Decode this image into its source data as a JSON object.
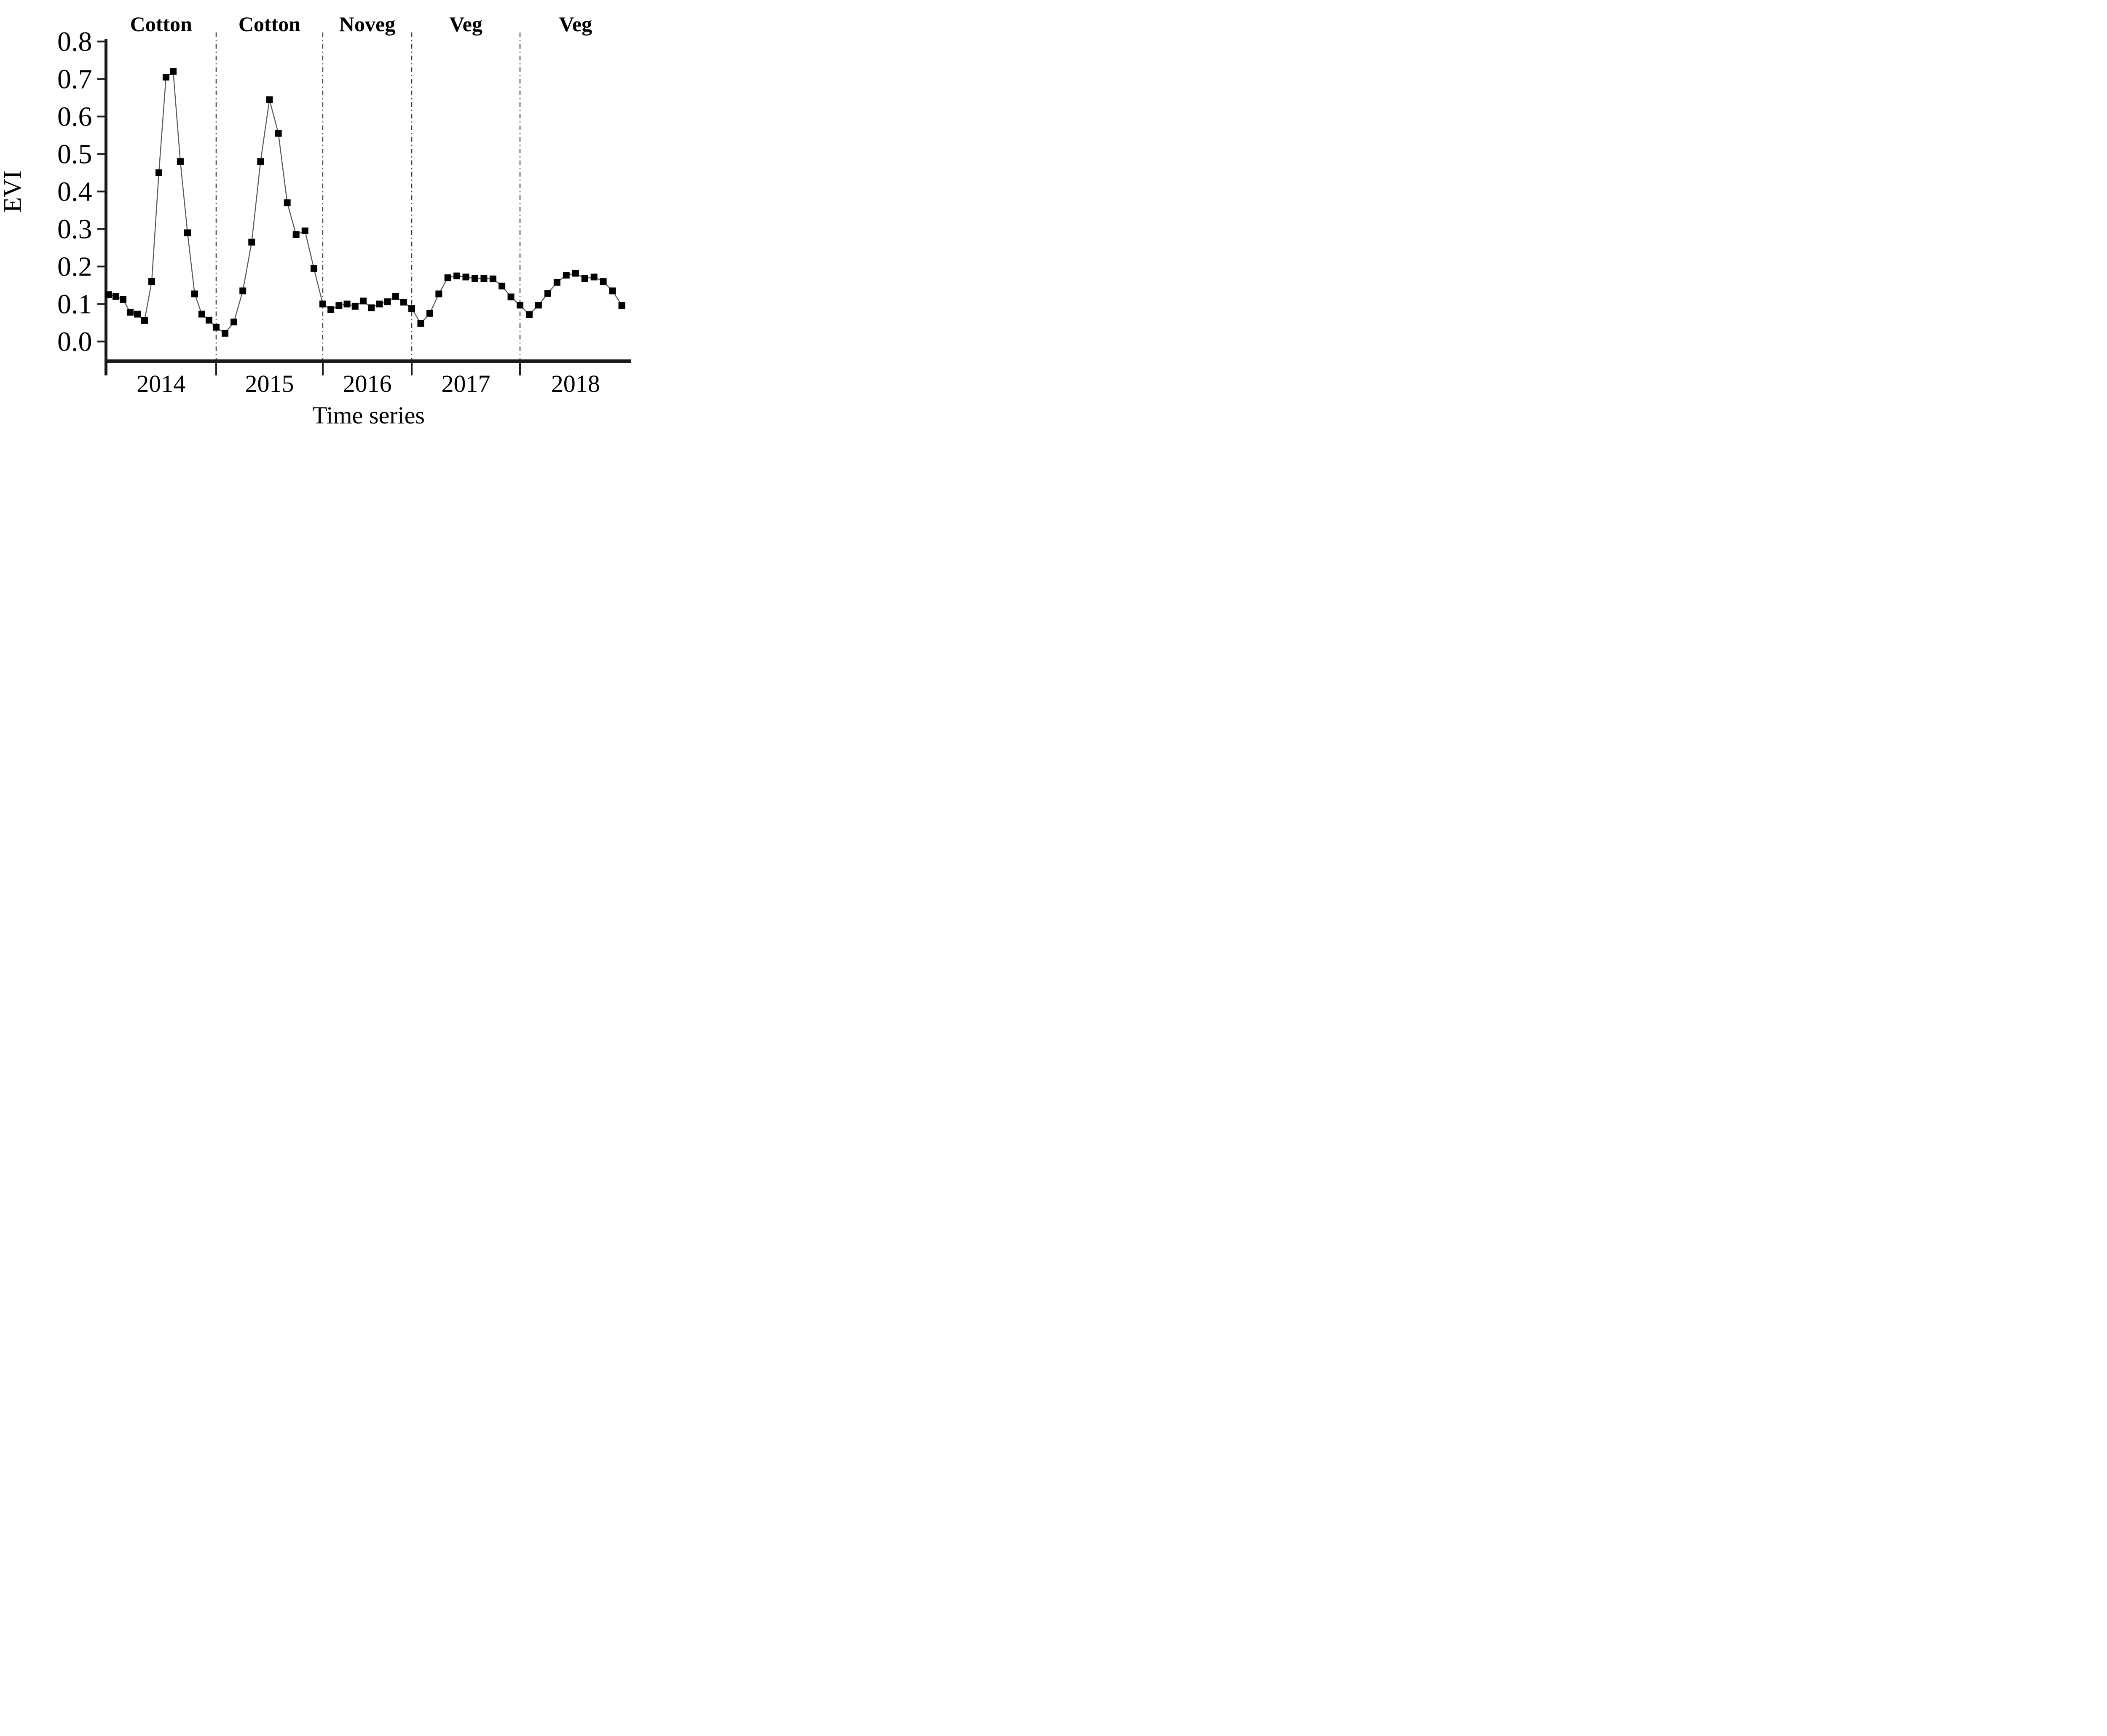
{
  "chart_data": {
    "type": "line",
    "title": "",
    "xlabel": "Time series",
    "ylabel": "EVI",
    "legend": [],
    "grid": false,
    "marker": "filled-square",
    "marker_color": "#000000",
    "line_color": "#5a5a5a",
    "axis_color": "#1a1a1a",
    "divider_color": "#3c3c3c",
    "ylim": [
      -0.053,
      0.82
    ],
    "yticks": [
      "0.0",
      "0.1",
      "0.2",
      "0.3",
      "0.4",
      "0.5",
      "0.6",
      "0.7",
      "0.8"
    ],
    "x_year_labels": [
      "2014",
      "2015",
      "2016",
      "2017",
      "2018"
    ],
    "section_labels": [
      "Cotton",
      "Cotton",
      "Noveg",
      "Veg",
      "Veg"
    ],
    "year_boundaries_frac": [
      0.2098,
      0.4129,
      0.5823,
      0.7885
    ],
    "points": [
      {
        "x": 0.0052,
        "y": 0.125
      },
      {
        "x": 0.0188,
        "y": 0.12
      },
      {
        "x": 0.0325,
        "y": 0.112
      },
      {
        "x": 0.0461,
        "y": 0.078
      },
      {
        "x": 0.0598,
        "y": 0.073
      },
      {
        "x": 0.0734,
        "y": 0.056
      },
      {
        "x": 0.0871,
        "y": 0.16
      },
      {
        "x": 0.1007,
        "y": 0.45
      },
      {
        "x": 0.1143,
        "y": 0.705
      },
      {
        "x": 0.128,
        "y": 0.72
      },
      {
        "x": 0.1416,
        "y": 0.48
      },
      {
        "x": 0.1553,
        "y": 0.29
      },
      {
        "x": 0.1689,
        "y": 0.127
      },
      {
        "x": 0.1825,
        "y": 0.073
      },
      {
        "x": 0.1962,
        "y": 0.057
      },
      {
        "x": 0.2098,
        "y": 0.038
      },
      {
        "x": 0.2267,
        "y": 0.022
      },
      {
        "x": 0.2436,
        "y": 0.052
      },
      {
        "x": 0.2606,
        "y": 0.135
      },
      {
        "x": 0.2775,
        "y": 0.265
      },
      {
        "x": 0.2944,
        "y": 0.48
      },
      {
        "x": 0.3113,
        "y": 0.645
      },
      {
        "x": 0.3283,
        "y": 0.555
      },
      {
        "x": 0.3452,
        "y": 0.37
      },
      {
        "x": 0.3621,
        "y": 0.285
      },
      {
        "x": 0.379,
        "y": 0.295
      },
      {
        "x": 0.396,
        "y": 0.195
      },
      {
        "x": 0.4129,
        "y": 0.1
      },
      {
        "x": 0.4283,
        "y": 0.085
      },
      {
        "x": 0.4437,
        "y": 0.096
      },
      {
        "x": 0.4591,
        "y": 0.1
      },
      {
        "x": 0.4745,
        "y": 0.094
      },
      {
        "x": 0.4899,
        "y": 0.108
      },
      {
        "x": 0.5053,
        "y": 0.09
      },
      {
        "x": 0.5207,
        "y": 0.1
      },
      {
        "x": 0.5361,
        "y": 0.106
      },
      {
        "x": 0.5515,
        "y": 0.12
      },
      {
        "x": 0.5669,
        "y": 0.105
      },
      {
        "x": 0.5823,
        "y": 0.088
      },
      {
        "x": 0.5995,
        "y": 0.048
      },
      {
        "x": 0.6167,
        "y": 0.075
      },
      {
        "x": 0.6339,
        "y": 0.127
      },
      {
        "x": 0.651,
        "y": 0.17
      },
      {
        "x": 0.6682,
        "y": 0.175
      },
      {
        "x": 0.6854,
        "y": 0.172
      },
      {
        "x": 0.7026,
        "y": 0.168
      },
      {
        "x": 0.7198,
        "y": 0.168
      },
      {
        "x": 0.737,
        "y": 0.167
      },
      {
        "x": 0.7541,
        "y": 0.148
      },
      {
        "x": 0.7713,
        "y": 0.119
      },
      {
        "x": 0.7885,
        "y": 0.097
      },
      {
        "x": 0.8061,
        "y": 0.072
      },
      {
        "x": 0.8237,
        "y": 0.097
      },
      {
        "x": 0.8414,
        "y": 0.128
      },
      {
        "x": 0.859,
        "y": 0.158
      },
      {
        "x": 0.8766,
        "y": 0.177
      },
      {
        "x": 0.8943,
        "y": 0.182
      },
      {
        "x": 0.9119,
        "y": 0.168
      },
      {
        "x": 0.9295,
        "y": 0.172
      },
      {
        "x": 0.9471,
        "y": 0.16
      },
      {
        "x": 0.9648,
        "y": 0.135
      },
      {
        "x": 0.9824,
        "y": 0.096
      }
    ]
  }
}
